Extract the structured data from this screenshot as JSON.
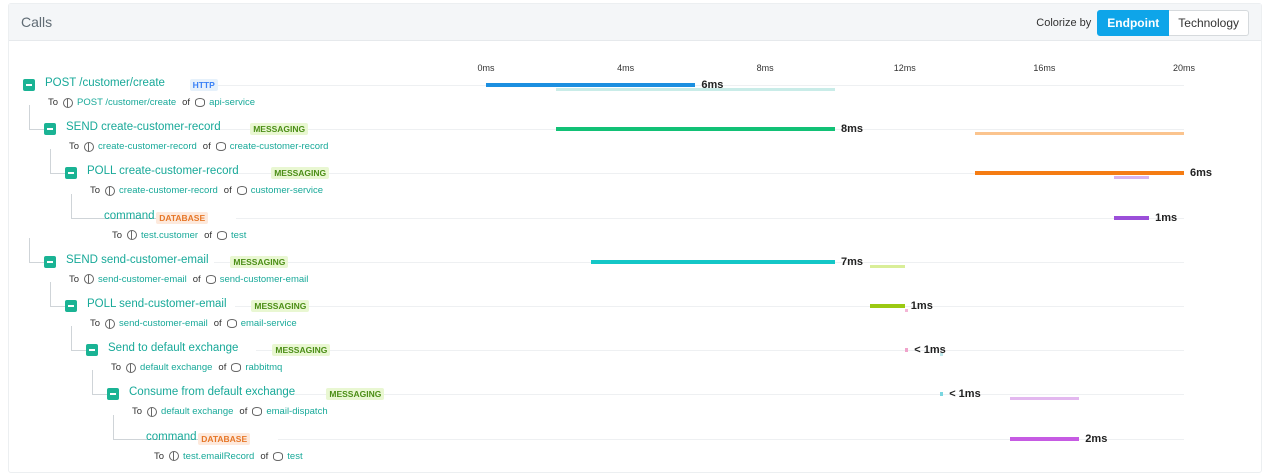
{
  "panel": {
    "title": "Calls",
    "colorize_label": "Colorize by",
    "colorize_options": [
      "Endpoint",
      "Technology"
    ],
    "colorize_active": "Endpoint"
  },
  "axis": {
    "ticks": [
      {
        "label": "0ms",
        "value": 0
      },
      {
        "label": "4ms",
        "value": 4
      },
      {
        "label": "8ms",
        "value": 8
      },
      {
        "label": "12ms",
        "value": 12
      },
      {
        "label": "16ms",
        "value": 16
      },
      {
        "label": "20ms",
        "value": 20
      }
    ],
    "max_ms": 20
  },
  "calls": [
    {
      "depth": 0,
      "name": "POST /customer/create",
      "tech": "HTTP",
      "target": "POST /customer/create",
      "service": "api-service",
      "start": 0,
      "end": 6,
      "duration": "6ms",
      "color": "#1c8fe0",
      "children_bar": {
        "start": 2,
        "end": 10,
        "color": "#c9ece8"
      }
    },
    {
      "depth": 1,
      "name": "SEND create-customer-record",
      "tech": "MESSAGING",
      "target": "create-customer-record",
      "service": "create-customer-record",
      "start": 2,
      "end": 10,
      "duration": "8ms",
      "color": "#12c176",
      "children_bar": {
        "start": 14,
        "end": 20,
        "color": "#fbc48e"
      }
    },
    {
      "depth": 2,
      "name": "POLL create-customer-record",
      "tech": "MESSAGING",
      "target": "create-customer-record",
      "service": "customer-service",
      "start": 14,
      "end": 20,
      "duration": "6ms",
      "color": "#f57c13",
      "children_bar": {
        "start": 18,
        "end": 19,
        "color": "#d7b4ec"
      }
    },
    {
      "depth": 3,
      "name": "command",
      "tech": "DATABASE",
      "target": "test.customer",
      "service": "test",
      "start": 18,
      "end": 19,
      "duration": "1ms",
      "color": "#9b4fd9",
      "leaf": true
    },
    {
      "depth": 1,
      "name": "SEND send-customer-email",
      "tech": "MESSAGING",
      "target": "send-customer-email",
      "service": "send-customer-email",
      "start": 3,
      "end": 10,
      "duration": "7ms",
      "color": "#14c7c7",
      "children_bar": {
        "start": 11,
        "end": 12,
        "color": "#d9ee98"
      }
    },
    {
      "depth": 2,
      "name": "POLL send-customer-email",
      "tech": "MESSAGING",
      "target": "send-customer-email",
      "service": "email-service",
      "start": 11,
      "end": 12,
      "duration": "1ms",
      "color": "#9bc912",
      "children_bar": {
        "start": 12,
        "end": 12.1,
        "color": "#f4b6d6"
      }
    },
    {
      "depth": 3,
      "name": "Send to default exchange",
      "tech": "MESSAGING",
      "target": "default exchange",
      "service": "rabbitmq",
      "start": 12,
      "end": 12.1,
      "duration": "< 1ms",
      "color": "#f0a3cb",
      "children_bar": {
        "start": 13,
        "end": 13.1,
        "color": "#bfe9ee"
      }
    },
    {
      "depth": 4,
      "name": "Consume from default exchange",
      "tech": "MESSAGING",
      "target": "default exchange",
      "service": "email-dispatch",
      "start": 13,
      "end": 13.1,
      "duration": "< 1ms",
      "color": "#7ad6e0",
      "children_bar": {
        "start": 15,
        "end": 17,
        "color": "#e3b8ef"
      }
    },
    {
      "depth": 5,
      "name": "command",
      "tech": "DATABASE",
      "target": "test.emailRecord",
      "service": "test",
      "start": 15,
      "end": 17,
      "duration": "2ms",
      "color": "#c65be3",
      "leaf": true
    }
  ],
  "labels": {
    "to": "To",
    "of": "of"
  }
}
